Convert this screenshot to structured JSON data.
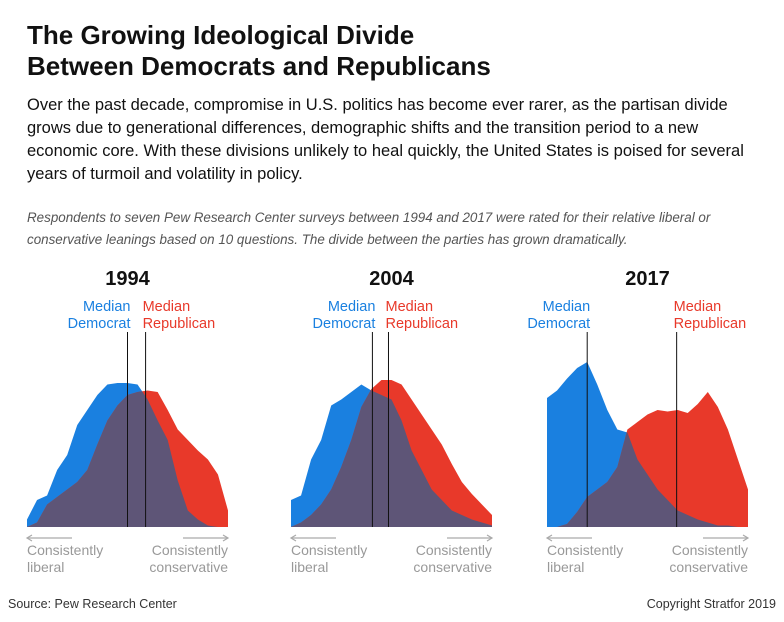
{
  "header": {
    "title": [
      "The Growing Ideological Divide",
      "Between Democrats and Republicans"
    ],
    "summary": "Over the past decade, compromise in U.S. politics has become ever rarer, as the partisan divide grows due to generational differences, demographic shifts and the transition period to a new economic core. With these divisions unlikely to heal quickly, the United States is poised for several years of turmoil and volatility in policy.",
    "note": "Respondents to seven Pew Research Center surveys between 1994 and 2017 were rated for their relative liberal or conservative leanings based on 10 questions. The divide between the parties has grown dramatically."
  },
  "chart_data": [
    {
      "type": "area",
      "title": "1994",
      "x_labels": [
        "Consistently liberal",
        "Consistently conservative"
      ],
      "series": [
        {
          "name": "Median Democrat",
          "color": "#1a80e0",
          "median": 10,
          "values": [
            5,
            18,
            21,
            38,
            48,
            68,
            78,
            88,
            95,
            96,
            96,
            95,
            85,
            71,
            58,
            31,
            11,
            5,
            1,
            0,
            0
          ]
        },
        {
          "name": "Median Republican",
          "color": "#e8392a",
          "median": 11.8,
          "values": [
            0,
            3,
            15,
            20,
            25,
            30,
            38,
            55,
            71,
            81,
            88,
            90,
            91,
            90,
            78,
            65,
            58,
            51,
            45,
            35,
            11
          ]
        }
      ]
    },
    {
      "type": "area",
      "title": "2004",
      "x_labels": [
        "Consistently liberal",
        "Consistently conservative"
      ],
      "series": [
        {
          "name": "Median Democrat",
          "color": "#1a80e0",
          "median": 8.1,
          "values": [
            18,
            21,
            45,
            58,
            81,
            85,
            90,
            95,
            91,
            88,
            85,
            71,
            51,
            38,
            25,
            18,
            11,
            8,
            5,
            3,
            1
          ]
        },
        {
          "name": "Median Republican",
          "color": "#e8392a",
          "median": 9.7,
          "values": [
            0,
            3,
            8,
            15,
            25,
            40,
            58,
            80,
            92,
            98,
            98,
            95,
            85,
            75,
            65,
            55,
            42,
            30,
            22,
            15,
            8
          ]
        }
      ]
    },
    {
      "type": "area",
      "title": "2017",
      "x_labels": [
        "Consistently liberal",
        "Consistently conservative"
      ],
      "series": [
        {
          "name": "Median Democrat",
          "color": "#1a80e0",
          "median": 4,
          "values": [
            86,
            91,
            99,
            106,
            110,
            95,
            78,
            65,
            63,
            45,
            35,
            25,
            18,
            11,
            8,
            5,
            3,
            1,
            1,
            0,
            0
          ]
        },
        {
          "name": "Median Republican",
          "color": "#e8392a",
          "median": 12.9,
          "values": [
            0,
            0,
            2,
            10,
            20,
            25,
            30,
            40,
            65,
            70,
            75,
            78,
            77,
            78,
            76,
            82,
            90,
            80,
            65,
            45,
            25
          ]
        }
      ]
    }
  ],
  "footer": {
    "source": "Source: Pew Research Center",
    "copyright": "Copyright Stratfor 2019"
  }
}
